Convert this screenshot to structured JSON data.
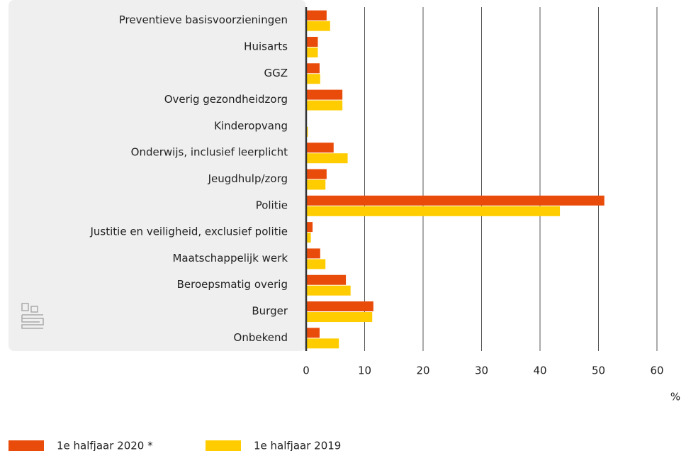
{
  "chart_data": {
    "type": "bar",
    "categories": [
      "Preventieve basisvoorzieningen",
      "Huisarts",
      "GGZ",
      "Overig gezondheidzorg",
      "Kinderopvang",
      "Onderwijs, inclusief leerplicht",
      "Jeugdhulp/zorg",
      "Politie",
      "Justitie en veiligheid, exclusief politie",
      "Maatschappelijk werk",
      "Beroepsmatig overig",
      "Burger",
      "Onbekend"
    ],
    "series": [
      {
        "name": "1e halfjaar 2020 *",
        "color": "#e94c0a",
        "values": [
          3.5,
          2.0,
          2.3,
          6.2,
          0.0,
          4.7,
          3.5,
          51.0,
          1.1,
          2.4,
          6.8,
          11.5,
          2.3
        ]
      },
      {
        "name": "1e halfjaar 2019",
        "color": "#ffcc00",
        "values": [
          4.1,
          2.0,
          2.4,
          6.2,
          0.3,
          7.1,
          3.3,
          43.4,
          0.8,
          3.3,
          7.6,
          11.3,
          5.6
        ]
      }
    ],
    "xlabel": "%",
    "xlim": [
      0,
      60
    ],
    "xticks": [
      0,
      10,
      20,
      30,
      40,
      50,
      60
    ],
    "grid": true,
    "legend": "bottom"
  }
}
